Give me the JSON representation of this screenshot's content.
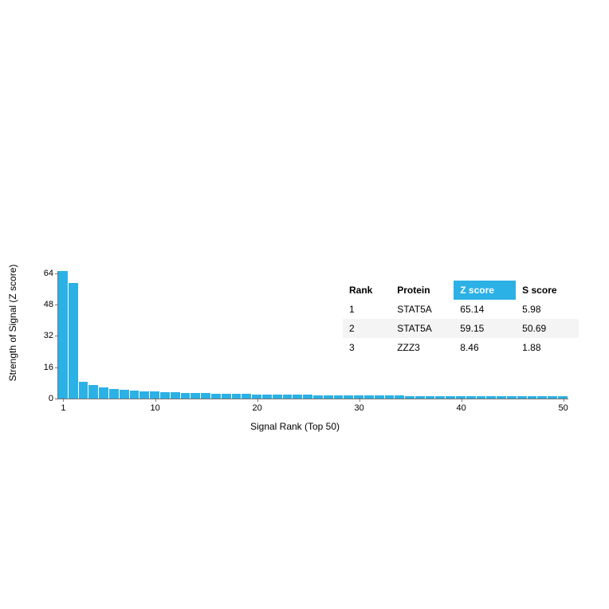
{
  "chart": {
    "type": "bar",
    "y_axis_title": "Strength of Signal (Z score)",
    "x_axis_title": "Signal Rank (Top 50)",
    "bar_color": "#2bb1e6",
    "background_color": "#ffffff",
    "axis_color": "#777777",
    "label_fontsize": 12,
    "tick_fontsize": 11,
    "ylim": [
      0,
      65.14
    ],
    "y_ticks": [
      0,
      16,
      32,
      48,
      64
    ],
    "x_ticks": [
      1,
      10,
      20,
      30,
      40,
      50
    ],
    "values": [
      65.14,
      59.15,
      8.46,
      7.0,
      5.8,
      5.0,
      4.5,
      4.1,
      3.8,
      3.5,
      3.3,
      3.1,
      2.95,
      2.8,
      2.68,
      2.55,
      2.45,
      2.35,
      2.25,
      2.17,
      2.1,
      2.03,
      1.96,
      1.9,
      1.84,
      1.78,
      1.73,
      1.68,
      1.63,
      1.59,
      1.55,
      1.51,
      1.47,
      1.44,
      1.41,
      1.38,
      1.35,
      1.32,
      1.3,
      1.27,
      1.25,
      1.23,
      1.21,
      1.19,
      1.17,
      1.15,
      1.13,
      1.11,
      1.1,
      1.08
    ]
  },
  "table": {
    "columns": [
      "Rank",
      "Protein",
      "Z score",
      "S score"
    ],
    "highlight_col_index": 2,
    "highlight_bg": "#2bb1e6",
    "highlight_fg": "#ffffff",
    "alt_row_bg": "#f4f4f4",
    "rows": [
      [
        "1",
        "STAT5A",
        "65.14",
        "5.98"
      ],
      [
        "2",
        "STAT5A",
        "59.15",
        "50.69"
      ],
      [
        "3",
        "ZZZ3",
        "8.46",
        "1.88"
      ]
    ]
  }
}
